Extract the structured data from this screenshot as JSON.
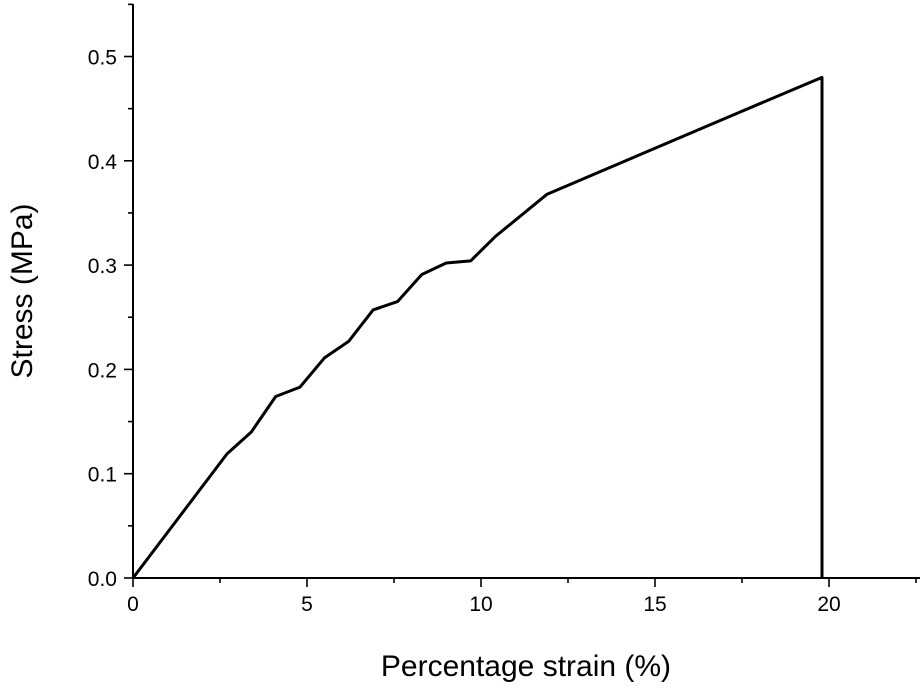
{
  "chart_data": {
    "type": "line",
    "title": "",
    "xlabel": "Percentage strain (%)",
    "ylabel": "Stress (MPa)",
    "xlim": [
      0,
      22.5
    ],
    "ylim": [
      0,
      0.55
    ],
    "xticks": [
      0,
      5,
      10,
      15,
      20
    ],
    "xtick_labels": [
      "0",
      "5",
      "10",
      "15",
      "20"
    ],
    "yticks": [
      0.0,
      0.1,
      0.2,
      0.3,
      0.4,
      0.5
    ],
    "ytick_labels": [
      "0.0",
      "0.1",
      "0.2",
      "0.3",
      "0.4",
      "0.5"
    ],
    "grid": false,
    "legend": "none",
    "series": [
      {
        "x": [
          0,
          2.7,
          3.4,
          4.1,
          4.8,
          5.5,
          6.2,
          6.9,
          7.6,
          8.3,
          9.0,
          9.7,
          10.4,
          11.9,
          17.6,
          19.8,
          19.8
        ],
        "y": [
          0,
          0.119,
          0.14,
          0.174,
          0.183,
          0.211,
          0.227,
          0.257,
          0.265,
          0.291,
          0.302,
          0.304,
          0.327,
          0.368,
          0.449,
          0.48,
          0.0
        ]
      }
    ]
  }
}
